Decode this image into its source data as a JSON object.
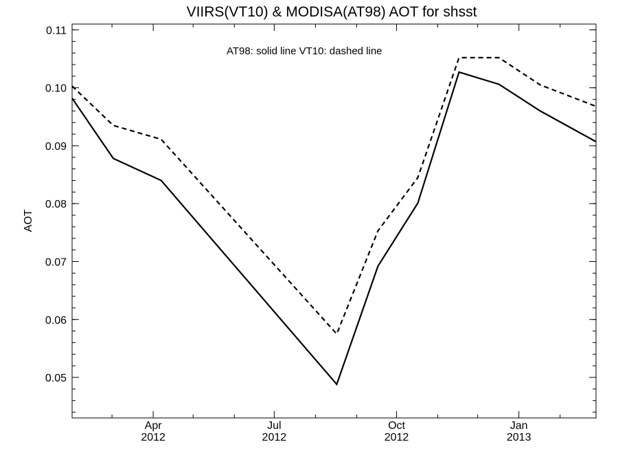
{
  "chart_data": {
    "type": "line",
    "title": "VIIRS(VT10) & MODISA(AT98)  AOT for shsst",
    "legend_text": "AT98: solid line   VT10: dashed line",
    "xlabel": "",
    "ylabel": "AOT",
    "x_range": [
      "2012-01-31",
      "2013-02-28"
    ],
    "ylim": [
      0.043,
      0.111
    ],
    "y_ticks": [
      0.05,
      0.06,
      0.07,
      0.08,
      0.09,
      0.1,
      0.11
    ],
    "y_tick_labels": [
      "0.05",
      "0.06",
      "0.07",
      "0.08",
      "0.09",
      "0.10",
      "0.11"
    ],
    "y_minor_step": 0.002,
    "x_major_ticks": [
      {
        "date": "2012-04-01",
        "month": "Apr",
        "year": "2012"
      },
      {
        "date": "2012-07-01",
        "month": "Jul",
        "year": "2012"
      },
      {
        "date": "2012-10-01",
        "month": "Oct",
        "year": "2012"
      },
      {
        "date": "2013-01-01",
        "month": "Jan",
        "year": "2013"
      }
    ],
    "x_minor_ticks": [
      "2012-03-01",
      "2012-05-01",
      "2012-06-01",
      "2012-08-01",
      "2012-09-01",
      "2012-11-01",
      "2012-12-01",
      "2013-02-01"
    ],
    "x": [
      "2012-01-31",
      "2012-03-02",
      "2012-04-07",
      "2012-07-17",
      "2012-08-17",
      "2012-09-17",
      "2012-10-17",
      "2012-11-17",
      "2012-12-17",
      "2013-01-17",
      "2013-02-28"
    ],
    "series": [
      {
        "name": "AT98",
        "style": "solid",
        "values": [
          0.0982,
          0.0878,
          0.084,
          null,
          0.0488,
          0.0692,
          0.0801,
          0.1027,
          0.1006,
          0.096,
          0.0907
        ]
      },
      {
        "name": "VT10",
        "style": "dashed",
        "values": [
          0.1003,
          0.0935,
          0.0911,
          null,
          0.0575,
          0.0753,
          0.0845,
          0.1052,
          0.1052,
          0.1005,
          0.0968
        ]
      }
    ],
    "grid": false
  }
}
